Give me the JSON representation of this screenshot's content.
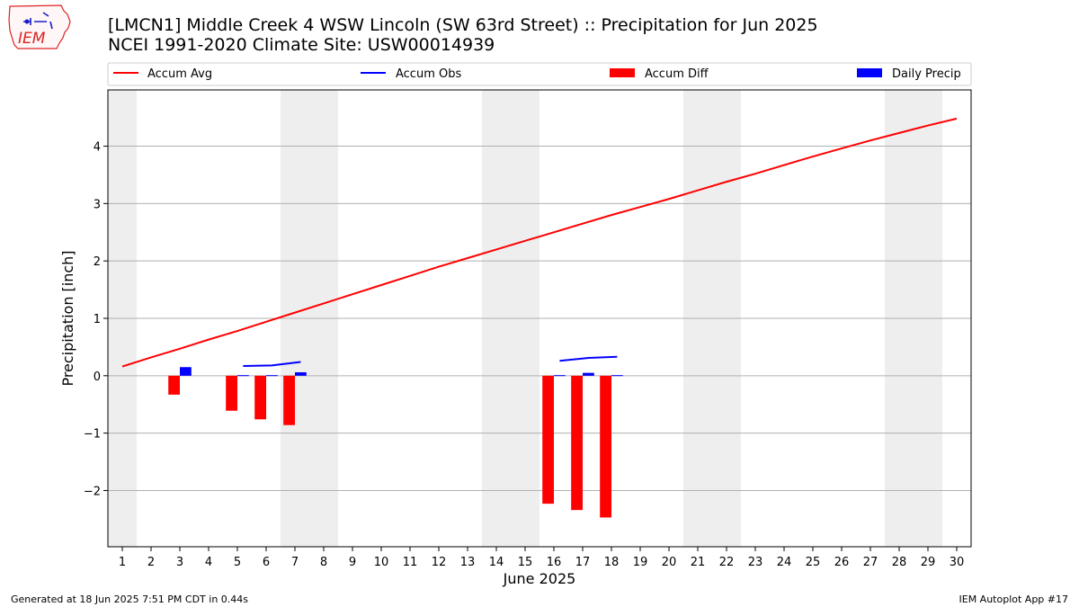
{
  "header": {
    "title": "[LMCN1] Middle Creek 4 WSW Lincoln (SW 63rd Street) :: Precipitation for Jun 2025",
    "subtitle": "NCEI 1991-2020 Climate Site: USW00014939",
    "logo_text": "IEM"
  },
  "footer": {
    "left": "Generated at 18 Jun 2025 7:51 PM CDT in 0.44s",
    "right": "IEM Autoplot App #17"
  },
  "colors": {
    "avg": "#ff0000",
    "obs": "#0000ff",
    "diff": "#ff0000",
    "daily": "#0000ff",
    "weekend_shade": "#eeeeee",
    "grid": "#b0b0b0"
  },
  "chart_data": {
    "type": "bar",
    "xlabel": "June 2025",
    "ylabel": "Precipitation [inch]",
    "xlim": [
      0.5,
      30.5
    ],
    "ylim": [
      -2.98,
      4.98
    ],
    "yticks": [
      -2,
      -1,
      0,
      1,
      2,
      3,
      4
    ],
    "ytick_labels": [
      "−2",
      "−1",
      "0",
      "1",
      "2",
      "3",
      "4"
    ],
    "days": [
      1,
      2,
      3,
      4,
      5,
      6,
      7,
      8,
      9,
      10,
      11,
      12,
      13,
      14,
      15,
      16,
      17,
      18,
      19,
      20,
      21,
      22,
      23,
      24,
      25,
      26,
      27,
      28,
      29,
      30
    ],
    "grid": "horizontal",
    "legend_position": "top",
    "legend": [
      "Accum Avg",
      "Accum Obs",
      "Accum Diff",
      "Daily Precip"
    ],
    "weekend_bands": [
      [
        0.5,
        1.5
      ],
      [
        6.5,
        8.5
      ],
      [
        13.5,
        15.5
      ],
      [
        20.5,
        22.5
      ],
      [
        27.5,
        29.5
      ]
    ],
    "accum_avg": [
      0.16,
      0.32,
      0.47,
      0.63,
      0.78,
      0.94,
      1.1,
      1.26,
      1.42,
      1.58,
      1.74,
      1.9,
      2.05,
      2.2,
      2.35,
      2.5,
      2.65,
      2.8,
      2.94,
      3.08,
      3.23,
      3.38,
      3.52,
      3.67,
      3.82,
      3.96,
      4.1,
      4.23,
      4.36,
      4.48
    ],
    "accum_obs": [
      null,
      null,
      null,
      null,
      0.17,
      0.18,
      0.24,
      null,
      null,
      null,
      null,
      null,
      null,
      null,
      null,
      0.26,
      0.31,
      0.33,
      null,
      null,
      null,
      null,
      null,
      null,
      null,
      null,
      null,
      null,
      null,
      null
    ],
    "accum_diff": [
      null,
      null,
      -0.33,
      null,
      -0.61,
      -0.76,
      -0.86,
      null,
      null,
      null,
      null,
      null,
      null,
      null,
      null,
      -2.23,
      -2.34,
      -2.47,
      null,
      null,
      null,
      null,
      null,
      null,
      null,
      null,
      null,
      null,
      null,
      null
    ],
    "daily_precip": [
      null,
      null,
      0.15,
      null,
      0.01,
      0.01,
      0.06,
      null,
      null,
      null,
      null,
      null,
      null,
      null,
      null,
      0.01,
      0.05,
      0.01,
      null,
      null,
      null,
      null,
      null,
      null,
      null,
      null,
      null,
      null,
      null,
      null
    ]
  }
}
